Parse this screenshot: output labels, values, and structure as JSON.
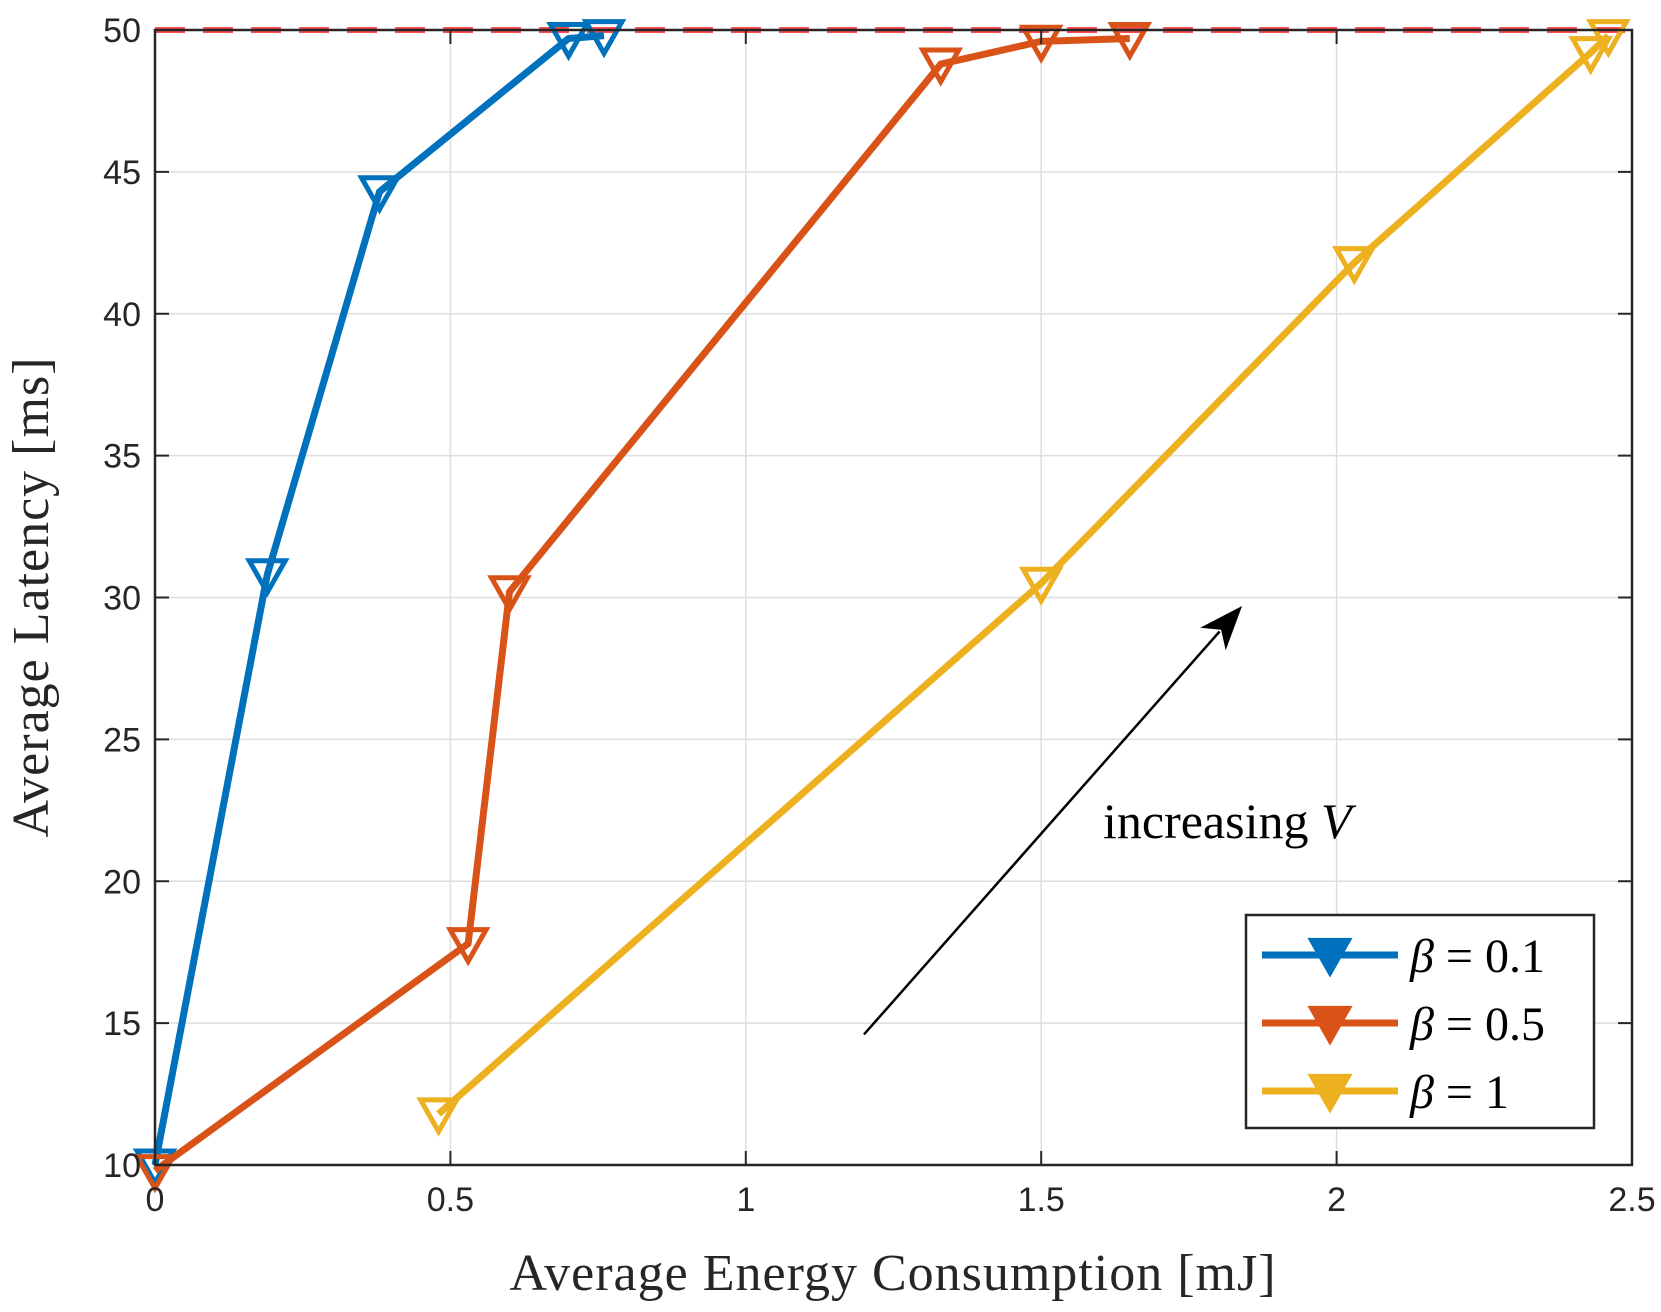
{
  "chart_data": {
    "type": "line",
    "title": "",
    "xlabel": "Average Energy Consumption [mJ]",
    "ylabel": "Average Latency [ms]",
    "xlim": [
      0,
      2.5
    ],
    "ylim": [
      10,
      50
    ],
    "xticks": [
      0,
      0.5,
      1,
      1.5,
      2,
      2.5
    ],
    "xtick_labels": [
      "0",
      "0.5",
      "1",
      "1.5",
      "2",
      "2.5"
    ],
    "yticks": [
      10,
      15,
      20,
      25,
      30,
      35,
      40,
      45,
      50
    ],
    "ytick_labels": [
      "10",
      "15",
      "20",
      "25",
      "30",
      "35",
      "40",
      "45",
      "50"
    ],
    "grid": true,
    "legend_position": "bottom-right",
    "series": [
      {
        "name": "β = 0.1",
        "legend_symbol": "β",
        "legend_value": "= 0.1",
        "color": "#0072BD",
        "marker": "downward-triangle",
        "x": [
          0.0,
          0.19,
          0.38,
          0.7,
          0.76
        ],
        "y": [
          10.0,
          30.8,
          44.3,
          49.7,
          49.8
        ]
      },
      {
        "name": "β = 0.5",
        "legend_symbol": "β",
        "legend_value": "= 0.5",
        "color": "#D95319",
        "marker": "downward-triangle",
        "x": [
          0.0,
          0.53,
          0.6,
          1.33,
          1.5,
          1.65
        ],
        "y": [
          9.8,
          17.8,
          30.2,
          48.8,
          49.6,
          49.7
        ]
      },
      {
        "name": "β = 1",
        "legend_symbol": "β",
        "legend_value": "= 1",
        "color": "#EDB120",
        "marker": "downward-triangle",
        "x": [
          0.48,
          1.5,
          2.03,
          2.43,
          2.46
        ],
        "y": [
          11.8,
          30.5,
          41.8,
          49.2,
          49.8
        ]
      }
    ],
    "reference_line": {
      "y": 50,
      "style": "dashed",
      "color": "#FF4D4D"
    },
    "annotations": [
      {
        "text": "increasing",
        "math": "V",
        "arrow_from": [
          1.2,
          14.6
        ],
        "arrow_to": [
          1.84,
          29.7
        ]
      }
    ]
  }
}
